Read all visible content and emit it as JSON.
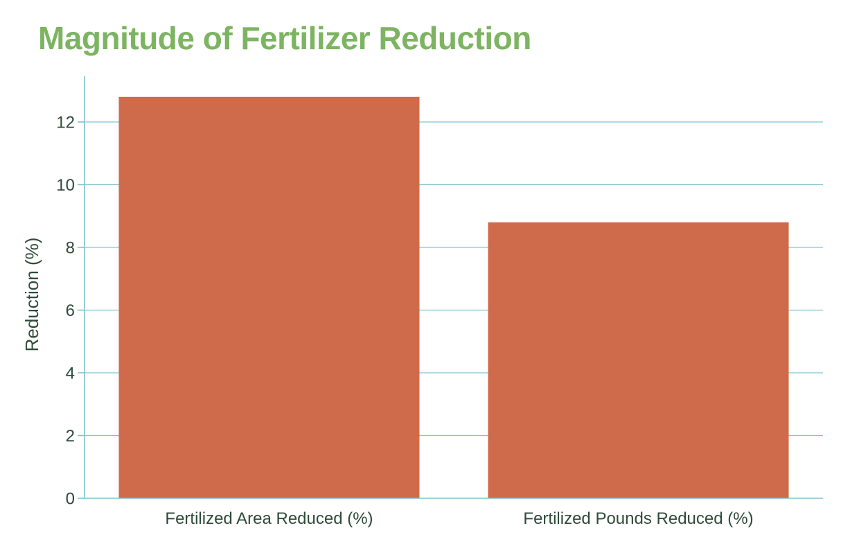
{
  "chart_data": {
    "type": "bar",
    "title": "Magnitude of Fertilizer Reduction",
    "categories": [
      "Fertilized Area Reduced (%)",
      "Fertilized Pounds Reduced (%)"
    ],
    "values": [
      12.8,
      8.8
    ],
    "xlabel": "",
    "ylabel": "Reduction (%)",
    "ylim": [
      0,
      13.5
    ],
    "yticks": [
      0,
      2,
      4,
      6,
      8,
      10,
      12
    ],
    "grid": true,
    "legend": "none",
    "colors": {
      "bar": "#cf6b4a",
      "title": "#7cb461",
      "grid": "#7fc3cf",
      "text": "#2e4a3a"
    }
  }
}
